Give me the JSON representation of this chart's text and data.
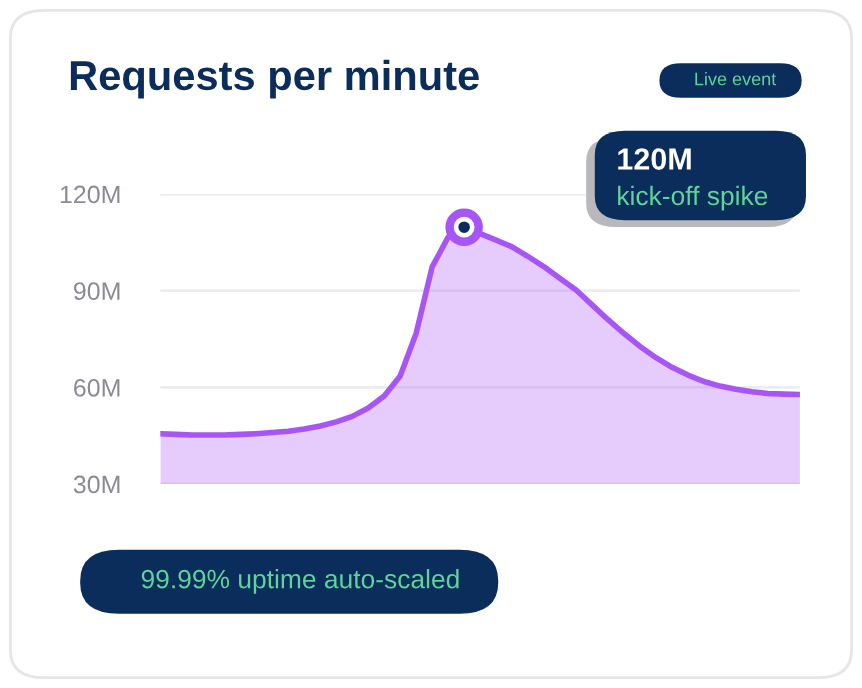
{
  "chart_data": {
    "type": "area",
    "title": "Requests per minute",
    "categories": [
      null,
      null,
      null,
      null,
      null,
      null,
      null,
      null,
      null,
      null,
      null,
      null,
      null,
      null,
      null,
      null,
      null,
      null,
      null,
      null,
      null,
      null,
      null,
      null,
      null,
      null,
      null,
      null,
      null,
      null,
      null,
      null,
      null,
      null,
      null,
      null,
      null,
      null,
      null,
      null,
      null
    ],
    "series": [
      {
        "color": "#a855f7",
        "values": [
          45.6,
          45.4,
          45.2,
          45.2,
          45.2,
          45.4,
          45.6,
          46,
          46.4,
          47.1,
          48,
          49.3,
          51,
          53.6,
          57.3,
          63.5,
          76.8,
          97.4,
          106.6,
          109.7,
          107.7,
          105.7,
          103.6,
          100.6,
          97.4,
          93.8,
          90.2,
          85.6,
          81,
          76.7,
          72.7,
          69.2,
          66.2,
          63.8,
          61.8,
          60.4,
          59.4,
          58.6,
          58.1,
          57.9,
          57.8
        ]
      },
      {
        "type": "scatter",
        "color": "#a855f7",
        "marker": "circle",
        "values": [
          null,
          null,
          null,
          null,
          null,
          null,
          null,
          null,
          null,
          null,
          null,
          null,
          null,
          null,
          null,
          null,
          null,
          null,
          null,
          109.7,
          null,
          null,
          null,
          null,
          null,
          null,
          null,
          null,
          null,
          null,
          null,
          null,
          null,
          null,
          null,
          null,
          null,
          null,
          null,
          null,
          null
        ]
      }
    ],
    "ylim": [
      30,
      120
    ],
    "yticks": [
      {
        "value": 30,
        "label": "30M"
      },
      {
        "value": 60,
        "label": "60M"
      },
      {
        "value": 90,
        "label": "90M"
      },
      {
        "value": 120,
        "label": "120M"
      }
    ],
    "grid": "y",
    "tick_labels": "y",
    "annotations": [
      "Live event",
      "120M",
      "kick-off spike",
      "99.99% uptime auto-scaled"
    ]
  }
}
